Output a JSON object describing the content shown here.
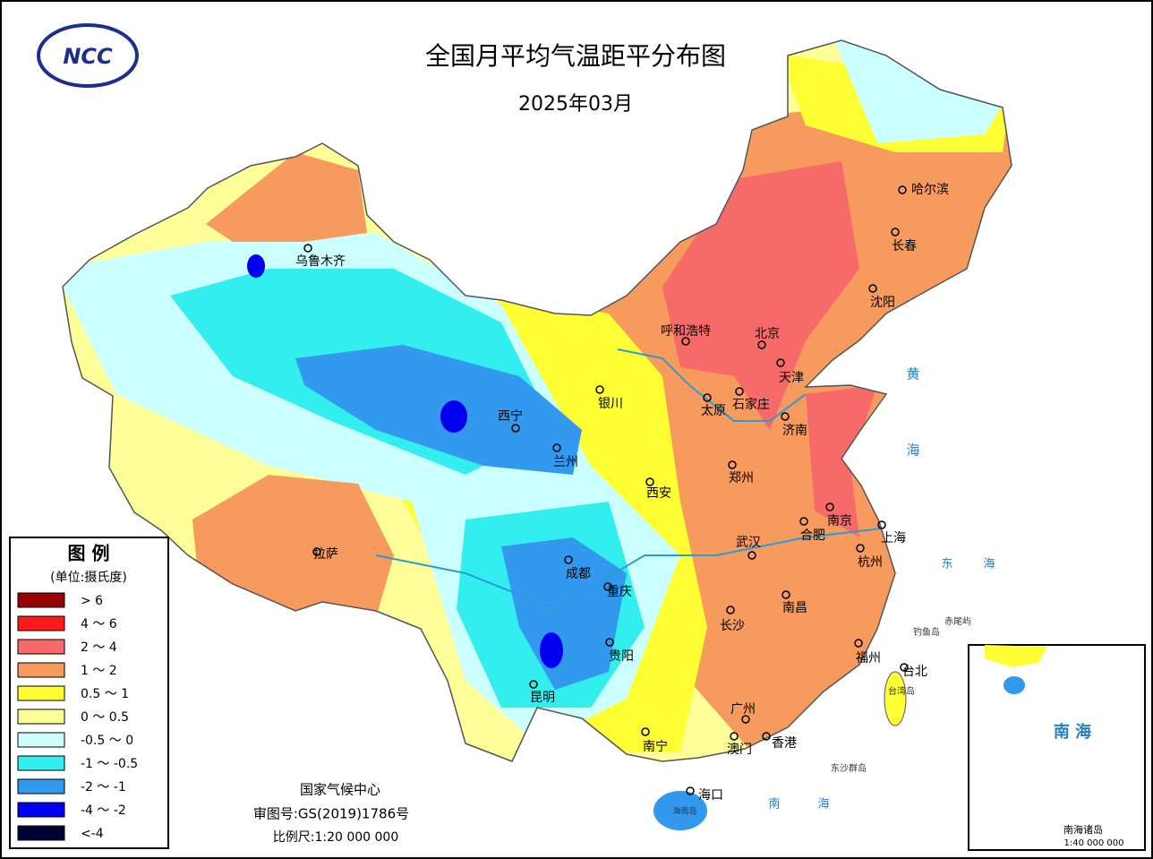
{
  "header": {
    "title": "全国月平均气温距平分布图",
    "subtitle": "2025年03月",
    "logo": "NCC"
  },
  "legend": {
    "title": "图 例",
    "unit": "(单位:摄氏度)",
    "items": [
      {
        "label": "> 6",
        "color": "#990000"
      },
      {
        "label": "4 ～ 6",
        "color": "#ff1a1a"
      },
      {
        "label": "2 ～ 4",
        "color": "#f76a6a"
      },
      {
        "label": "1 ～ 2",
        "color": "#f79a5e"
      },
      {
        "label": "0.5 ～ 1",
        "color": "#ffff33"
      },
      {
        "label": "0 ～ 0.5",
        "color": "#ffff99"
      },
      {
        "label": "-0.5 ～ 0",
        "color": "#ccffff"
      },
      {
        "label": "-1 ～ -0.5",
        "color": "#33eeee"
      },
      {
        "label": "-2 ～ -1",
        "color": "#3399ee"
      },
      {
        "label": "-4 ～ -2",
        "color": "#0000ee"
      },
      {
        "label": "<-4",
        "color": "#000033"
      }
    ]
  },
  "cities": [
    "乌鲁木齐",
    "呼和浩特",
    "北京",
    "天津",
    "石家庄",
    "太原",
    "银川",
    "济南",
    "西宁",
    "兰州",
    "郑州",
    "西安",
    "南京",
    "合肥",
    "上海",
    "武汉",
    "杭州",
    "成都",
    "重庆",
    "长沙",
    "南昌",
    "贵阳",
    "福州",
    "昆明",
    "台北",
    "广州",
    "南宁",
    "澳门",
    "香港",
    "海口",
    "拉萨",
    "哈尔滨",
    "长春",
    "沈阳"
  ],
  "places": [
    "黄",
    "海",
    "东",
    "海",
    "南",
    "海",
    "台湾岛",
    "海南岛",
    "钓鱼岛",
    "赤尾屿",
    "东沙群岛"
  ],
  "footer": {
    "agency": "国家气候中心",
    "approval": "审图号:GS(2019)1786号",
    "scale": "比例尺:1:20 000 000"
  },
  "inset": {
    "title": "南 海",
    "label": "南海诸岛",
    "scale": "1:40 000 000"
  }
}
